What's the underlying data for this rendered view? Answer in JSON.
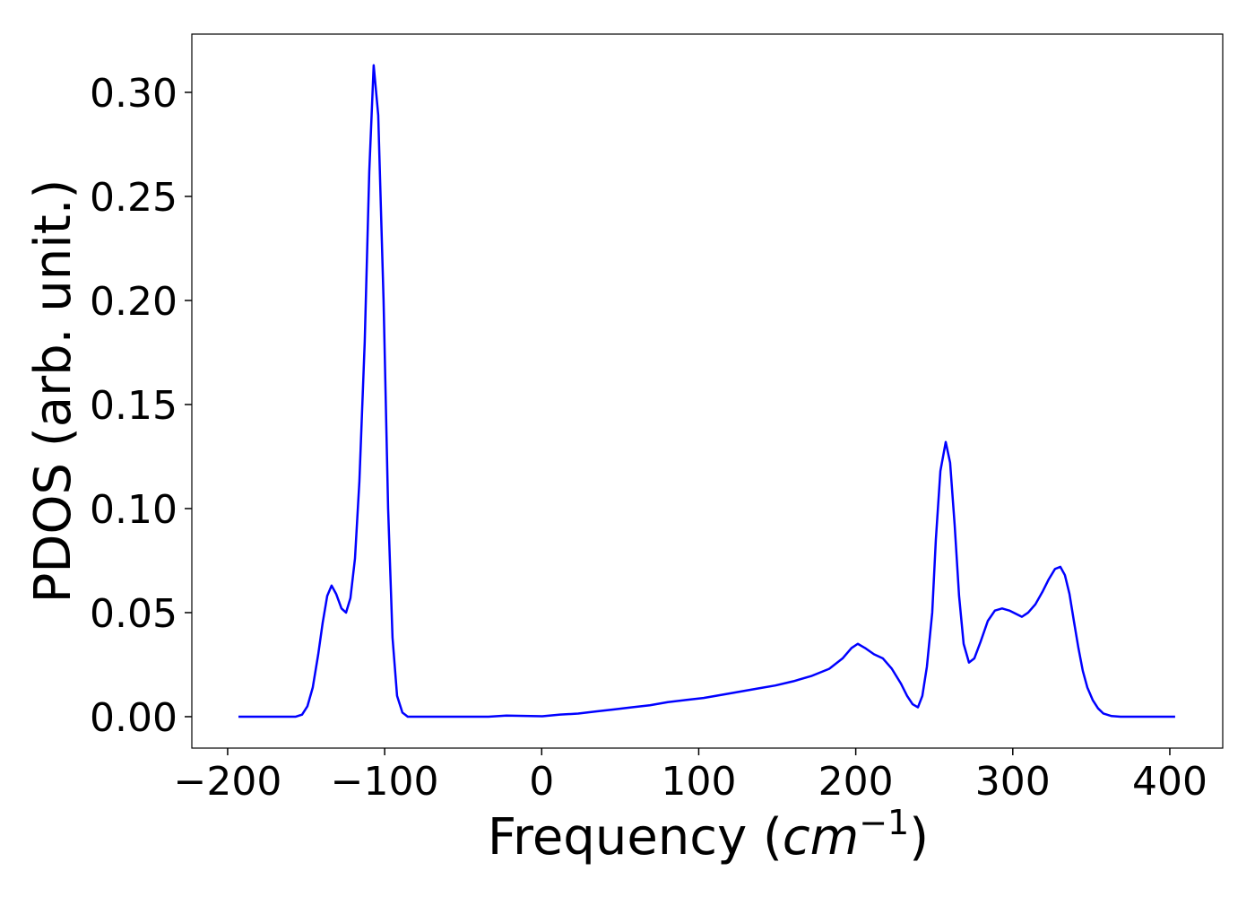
{
  "chart_data": {
    "type": "line",
    "xlabel": [
      "Frequency (",
      "cm",
      "−1",
      ")"
    ],
    "ylabel": "PDOS (arb. unit.)",
    "xlim": [
      -222.8,
      433.7
    ],
    "ylim": [
      -0.0151,
      0.328
    ],
    "xticks": [
      {
        "value": -200,
        "label": "−200"
      },
      {
        "value": -100,
        "label": "−100"
      },
      0,
      100,
      200,
      300,
      400
    ],
    "yticks": [
      {
        "value": 0,
        "label": "0.00"
      },
      {
        "value": 0.05,
        "label": "0.05"
      },
      {
        "value": 0.1,
        "label": "0.10"
      },
      {
        "value": 0.15,
        "label": "0.15"
      },
      {
        "value": 0.2,
        "label": "0.20"
      },
      {
        "value": 0.25,
        "label": "0.25"
      },
      {
        "value": 0.3,
        "label": "0.30"
      }
    ],
    "x": [
      -193.1,
      -156.6,
      -152.6,
      -149.2,
      -145.8,
      -142.3,
      -139.5,
      -136.6,
      -133.8,
      -130.9,
      -127.5,
      -124.6,
      -121.8,
      -118.9,
      -116.1,
      -112.7,
      -109.8,
      -107.0,
      -104.1,
      -100.7,
      -97.8,
      -95.0,
      -92.1,
      -88.7,
      -85.3,
      -33.9,
      -22.5,
      0.4,
      11.8,
      23.2,
      34.6,
      46.1,
      57.5,
      68.9,
      80.3,
      91.7,
      103.1,
      114.6,
      126.0,
      137.4,
      148.8,
      160.2,
      171.6,
      183.1,
      191.6,
      197.3,
      201.3,
      205.9,
      211.6,
      217.3,
      223.0,
      228.7,
      232.7,
      236.2,
      239.6,
      242.4,
      245.3,
      248.7,
      251.0,
      253.9,
      257.3,
      260.1,
      263.0,
      265.8,
      268.7,
      272.1,
      275.5,
      279.5,
      284.1,
      288.6,
      293.2,
      297.8,
      301.8,
      305.8,
      309.8,
      314.4,
      318.9,
      322.9,
      326.9,
      330.3,
      333.2,
      336.1,
      338.9,
      341.8,
      344.6,
      347.5,
      350.9,
      354.3,
      357.7,
      362.9,
      368.6,
      403.4
    ],
    "series": [
      {
        "color": "#0000ff",
        "values": [
          0,
          0,
          0.001,
          0.005,
          0.014,
          0.03,
          0.045,
          0.058,
          0.063,
          0.059,
          0.052,
          0.05,
          0.057,
          0.076,
          0.113,
          0.18,
          0.262,
          0.313,
          0.289,
          0.2,
          0.1,
          0.038,
          0.01,
          0.002,
          0,
          0,
          0.0005,
          0.0002,
          0.001,
          0.0015,
          0.0025,
          0.0035,
          0.0045,
          0.0055,
          0.007,
          0.008,
          0.009,
          0.0105,
          0.012,
          0.0135,
          0.015,
          0.017,
          0.0195,
          0.023,
          0.028,
          0.033,
          0.035,
          0.033,
          0.03,
          0.028,
          0.023,
          0.016,
          0.01,
          0.006,
          0.0045,
          0.01,
          0.024,
          0.05,
          0.085,
          0.118,
          0.132,
          0.122,
          0.092,
          0.058,
          0.035,
          0.026,
          0.028,
          0.036,
          0.046,
          0.051,
          0.052,
          0.051,
          0.0495,
          0.048,
          0.05,
          0.054,
          0.06,
          0.066,
          0.071,
          0.072,
          0.068,
          0.059,
          0.046,
          0.033,
          0.022,
          0.014,
          0.008,
          0.004,
          0.0015,
          0.0003,
          0,
          0
        ]
      }
    ]
  }
}
